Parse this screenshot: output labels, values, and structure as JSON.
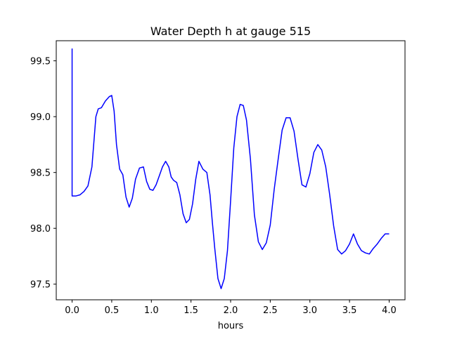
{
  "chart_data": {
    "type": "line",
    "title": "Water Depth h at gauge 515",
    "xlabel": "hours",
    "ylabel": "",
    "xlim": [
      -0.2,
      4.2
    ],
    "ylim": [
      97.36,
      99.68
    ],
    "xticks": [
      0.0,
      0.5,
      1.0,
      1.5,
      2.0,
      2.5,
      3.0,
      3.5,
      4.0
    ],
    "xtick_labels": [
      "0.0",
      "0.5",
      "1.0",
      "1.5",
      "2.0",
      "2.5",
      "3.0",
      "3.5",
      "4.0"
    ],
    "yticks": [
      97.5,
      98.0,
      98.5,
      99.0,
      99.5
    ],
    "ytick_labels": [
      "97.5",
      "98.0",
      "98.5",
      "99.0",
      "99.5"
    ],
    "grid": false,
    "series": [
      {
        "color": "#0000ff",
        "x": [
          0.0,
          0.0,
          0.05,
          0.1,
          0.15,
          0.2,
          0.25,
          0.3,
          0.33,
          0.37,
          0.42,
          0.47,
          0.5,
          0.53,
          0.56,
          0.6,
          0.64,
          0.68,
          0.72,
          0.76,
          0.8,
          0.85,
          0.9,
          0.94,
          0.98,
          1.02,
          1.06,
          1.1,
          1.14,
          1.18,
          1.22,
          1.25,
          1.28,
          1.32,
          1.36,
          1.4,
          1.44,
          1.48,
          1.52,
          1.56,
          1.6,
          1.65,
          1.7,
          1.74,
          1.77,
          1.8,
          1.84,
          1.88,
          1.92,
          1.96,
          2.0,
          2.04,
          2.08,
          2.12,
          2.16,
          2.2,
          2.25,
          2.3,
          2.35,
          2.4,
          2.45,
          2.5,
          2.55,
          2.6,
          2.65,
          2.7,
          2.75,
          2.8,
          2.85,
          2.9,
          2.95,
          3.0,
          3.05,
          3.1,
          3.15,
          3.2,
          3.25,
          3.3,
          3.35,
          3.4,
          3.45,
          3.5,
          3.55,
          3.6,
          3.65,
          3.7,
          3.75,
          3.8,
          3.85,
          3.9,
          3.95,
          4.0
        ],
        "y": [
          99.61,
          98.29,
          98.29,
          98.3,
          98.33,
          98.38,
          98.55,
          99.0,
          99.07,
          99.08,
          99.14,
          99.18,
          99.19,
          99.05,
          98.75,
          98.53,
          98.48,
          98.28,
          98.19,
          98.27,
          98.44,
          98.54,
          98.55,
          98.42,
          98.35,
          98.34,
          98.39,
          98.47,
          98.55,
          98.6,
          98.55,
          98.46,
          98.43,
          98.41,
          98.3,
          98.13,
          98.05,
          98.08,
          98.22,
          98.44,
          98.6,
          98.53,
          98.5,
          98.3,
          98.05,
          97.82,
          97.55,
          97.46,
          97.55,
          97.8,
          98.25,
          98.72,
          99.0,
          99.11,
          99.1,
          98.97,
          98.62,
          98.12,
          97.88,
          97.81,
          97.87,
          98.03,
          98.35,
          98.62,
          98.88,
          98.99,
          98.99,
          98.87,
          98.62,
          98.39,
          98.37,
          98.49,
          98.68,
          98.75,
          98.7,
          98.55,
          98.3,
          98.02,
          97.81,
          97.77,
          97.8,
          97.86,
          97.95,
          97.86,
          97.8,
          97.78,
          97.77,
          97.82,
          97.86,
          97.91,
          97.95,
          97.95
        ]
      }
    ]
  }
}
